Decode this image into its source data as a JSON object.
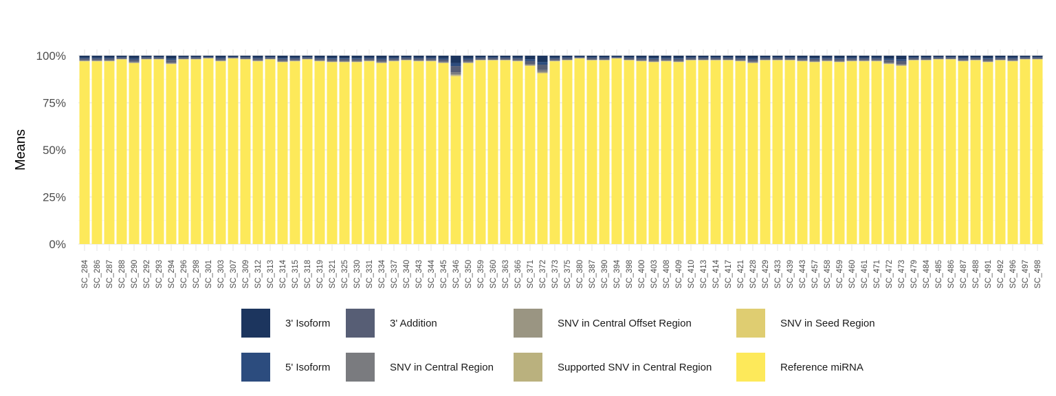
{
  "chart_data": {
    "type": "bar",
    "stacked": true,
    "title": "",
    "xlabel": "",
    "ylabel": "Means",
    "ylim": [
      0,
      1
    ],
    "ytick_labels": [
      "0%",
      "25%",
      "50%",
      "75%",
      "100%"
    ],
    "ytick_values": [
      0,
      0.25,
      0.5,
      0.75,
      1.0
    ],
    "grid": true,
    "legend_position": "bottom",
    "categories": [
      "SC_284",
      "SC_286",
      "SC_287",
      "SC_288",
      "SC_290",
      "SC_292",
      "SC_293",
      "SC_294",
      "SC_296",
      "SC_298",
      "SC_301",
      "SC_303",
      "SC_307",
      "SC_309",
      "SC_312",
      "SC_313",
      "SC_314",
      "SC_315",
      "SC_318",
      "SC_319",
      "SC_321",
      "SC_325",
      "SC_330",
      "SC_331",
      "SC_334",
      "SC_337",
      "SC_340",
      "SC_343",
      "SC_344",
      "SC_345",
      "SC_346",
      "SC_350",
      "SC_359",
      "SC_360",
      "SC_363",
      "SC_366",
      "SC_371",
      "SC_372",
      "SC_373",
      "SC_375",
      "SC_380",
      "SC_387",
      "SC_390",
      "SC_394",
      "SC_398",
      "SC_400",
      "SC_403",
      "SC_408",
      "SC_409",
      "SC_410",
      "SC_413",
      "SC_414",
      "SC_417",
      "SC_421",
      "SC_428",
      "SC_429",
      "SC_433",
      "SC_439",
      "SC_443",
      "SC_457",
      "SC_458",
      "SC_459",
      "SC_460",
      "SC_461",
      "SC_471",
      "SC_472",
      "SC_473",
      "SC_479",
      "SC_484",
      "SC_485",
      "SC_486",
      "SC_487",
      "SC_488",
      "SC_491",
      "SC_492",
      "SC_496",
      "SC_497",
      "SC_498"
    ],
    "reference_values": [
      0.97,
      0.97,
      0.97,
      0.98,
      0.96,
      0.98,
      0.98,
      0.955,
      0.98,
      0.98,
      0.985,
      0.97,
      0.985,
      0.98,
      0.97,
      0.98,
      0.965,
      0.97,
      0.98,
      0.97,
      0.965,
      0.965,
      0.965,
      0.97,
      0.96,
      0.97,
      0.975,
      0.97,
      0.97,
      0.96,
      0.89,
      0.96,
      0.975,
      0.975,
      0.975,
      0.97,
      0.945,
      0.905,
      0.97,
      0.975,
      0.985,
      0.975,
      0.975,
      0.985,
      0.975,
      0.97,
      0.965,
      0.97,
      0.965,
      0.975,
      0.975,
      0.975,
      0.975,
      0.97,
      0.96,
      0.975,
      0.975,
      0.975,
      0.97,
      0.965,
      0.97,
      0.965,
      0.97,
      0.97,
      0.97,
      0.955,
      0.945,
      0.975,
      0.975,
      0.98,
      0.98,
      0.97,
      0.975,
      0.965,
      0.975,
      0.97,
      0.98,
      0.98
    ],
    "series": [
      {
        "name": "3' Isoform",
        "color": "#1c355e"
      },
      {
        "name": "5' Isoform",
        "color": "#2c4c7e"
      },
      {
        "name": "3' Addition",
        "color": "#575e75"
      },
      {
        "name": "SNV in Central Region",
        "color": "#7a7b7f"
      },
      {
        "name": "SNV in Central Offset Region",
        "color": "#9a9582"
      },
      {
        "name": "Supported SNV in Central Region",
        "color": "#bab17e"
      },
      {
        "name": "SNV in Seed Region",
        "color": "#dfcd71"
      },
      {
        "name": "Reference miRNA",
        "color": "#fde95a"
      }
    ]
  },
  "legend": {
    "items": [
      {
        "label": "3' Isoform",
        "color": "#1c355e"
      },
      {
        "label": "5' Isoform",
        "color": "#2c4c7e"
      },
      {
        "label": "3' Addition",
        "color": "#575e75"
      },
      {
        "label": "SNV in Central Region",
        "color": "#7a7b7f"
      },
      {
        "label": "SNV in Central Offset Region",
        "color": "#9a9582"
      },
      {
        "label": "Supported SNV in Central Region",
        "color": "#bab17e"
      },
      {
        "label": "SNV in Seed Region",
        "color": "#dfcd71"
      },
      {
        "label": "Reference miRNA",
        "color": "#fde95a"
      }
    ]
  }
}
